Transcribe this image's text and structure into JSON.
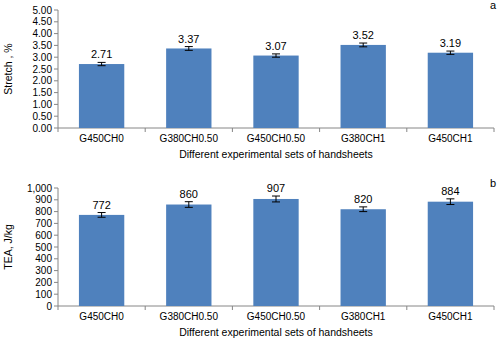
{
  "chart_data": [
    {
      "type": "bar",
      "title": "a",
      "x_label": "Different experimental sets of handsheets",
      "y_label": "Stretch , %",
      "categories": [
        "G450CH0",
        "G380CH0.50",
        "G450CH0.50",
        "G380CH1",
        "G450CH1"
      ],
      "values": [
        2.71,
        3.37,
        3.07,
        3.52,
        3.19
      ],
      "errors": [
        0.07,
        0.08,
        0.07,
        0.08,
        0.07
      ],
      "color": "#4f81bd",
      "data_labels": true,
      "grid": false,
      "ylim": [
        0,
        5
      ],
      "yticks": [
        {
          "value": 0,
          "label": "0.00"
        },
        {
          "value": 0.5,
          "label": "0.50"
        },
        {
          "value": 1,
          "label": "1.00"
        },
        {
          "value": 1.5,
          "label": "1.50"
        },
        {
          "value": 2,
          "label": "2.00"
        },
        {
          "value": 2.5,
          "label": "2.50"
        },
        {
          "value": 3,
          "label": "3.00"
        },
        {
          "value": 3.5,
          "label": "3.50"
        },
        {
          "value": 4,
          "label": "4.00"
        },
        {
          "value": 4.5,
          "label": "4.50"
        },
        {
          "value": 5,
          "label": "5.00"
        }
      ]
    },
    {
      "type": "bar",
      "title": "b",
      "x_label": "Different experimental sets of handsheets",
      "y_label": "TEA, J/kg",
      "categories": [
        "G450CH0",
        "G380CH0.50",
        "G450CH0.50",
        "G380CH1",
        "G450CH1"
      ],
      "values": [
        772,
        860,
        907,
        820,
        884
      ],
      "errors": [
        20,
        24,
        25,
        20,
        24
      ],
      "color": "#4f81bd",
      "data_labels": true,
      "grid": false,
      "ylim": [
        0,
        1000
      ],
      "yticks": [
        0,
        100,
        200,
        300,
        400,
        500,
        600,
        700,
        800,
        900,
        {
          "value": 1000,
          "label": "1,000"
        }
      ]
    }
  ]
}
